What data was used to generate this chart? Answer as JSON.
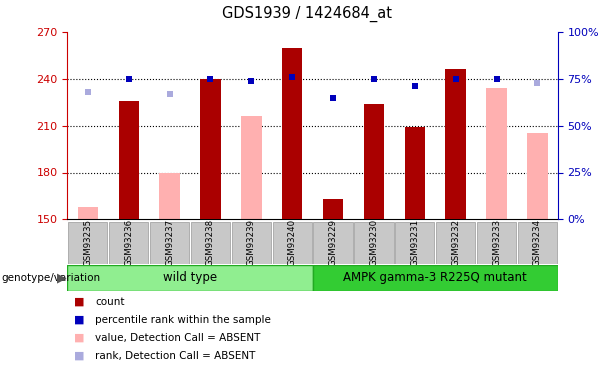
{
  "title": "GDS1939 / 1424684_at",
  "samples": [
    "GSM93235",
    "GSM93236",
    "GSM93237",
    "GSM93238",
    "GSM93239",
    "GSM93240",
    "GSM93229",
    "GSM93230",
    "GSM93231",
    "GSM93232",
    "GSM93233",
    "GSM93234"
  ],
  "ylim_left": [
    150,
    270
  ],
  "ylim_right": [
    0,
    100
  ],
  "yticks_left": [
    150,
    180,
    210,
    240,
    270
  ],
  "yticks_right": [
    0,
    25,
    50,
    75,
    100
  ],
  "yticklabels_right": [
    "0%",
    "25%",
    "50%",
    "75%",
    "100%"
  ],
  "red_bars": [
    null,
    226,
    null,
    240,
    null,
    260,
    163,
    224,
    209,
    246,
    null,
    null
  ],
  "pink_bars": [
    158,
    null,
    180,
    null,
    216,
    null,
    null,
    null,
    null,
    null,
    234,
    205
  ],
  "blue_sq_yvals": [
    null,
    75,
    null,
    75,
    74,
    76,
    65,
    75,
    71,
    75,
    75,
    null
  ],
  "lavender_sq_yvals": [
    68,
    null,
    67,
    null,
    null,
    null,
    null,
    null,
    null,
    null,
    null,
    73
  ],
  "wild_type_count": 6,
  "mutant_count": 6,
  "group1_label": "wild type",
  "group2_label": "AMPK gamma-3 R225Q mutant",
  "bar_color_red": "#AA0000",
  "bar_color_pink": "#FFB0B0",
  "sq_color_blue": "#0000BB",
  "sq_color_lavender": "#AAAADD",
  "xlabel_color_red": "#CC0000",
  "ylabel_right_color": "#0000BB",
  "genotype_label": "genotype/variation",
  "legend_items": [
    "count",
    "percentile rank within the sample",
    "value, Detection Call = ABSENT",
    "rank, Detection Call = ABSENT"
  ],
  "wt_color": "#90EE90",
  "mut_color": "#33CC33",
  "sample_box_color": "#C8C8C8"
}
